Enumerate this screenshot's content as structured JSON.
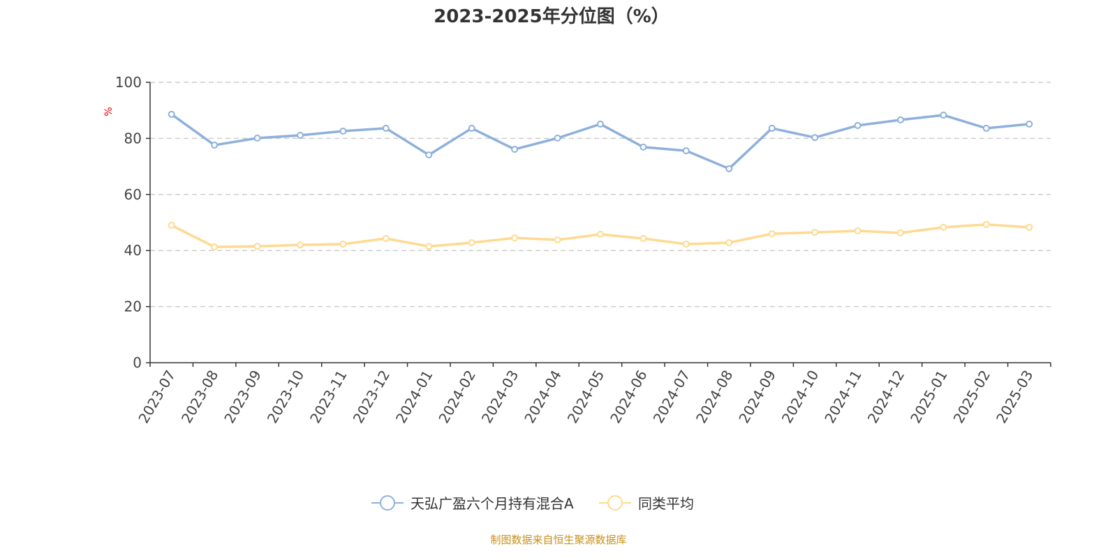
{
  "chart_data": {
    "type": "line",
    "title": "2023-2025年分位图（%）",
    "xlabel": "",
    "ylabel": "%",
    "ylim": [
      0,
      100
    ],
    "yticks": [
      0,
      20,
      40,
      60,
      80,
      100
    ],
    "grid": true,
    "legend_position": "bottom",
    "categories": [
      "2023-07",
      "2023-08",
      "2023-09",
      "2023-10",
      "2023-11",
      "2023-12",
      "2024-01",
      "2024-02",
      "2024-03",
      "2024-04",
      "2024-05",
      "2024-06",
      "2024-07",
      "2024-08",
      "2024-09",
      "2024-10",
      "2024-11",
      "2024-12",
      "2025-01",
      "2025-02",
      "2025-03"
    ],
    "series": [
      {
        "name": "天弘广盈六个月持有混合A",
        "color": "#8eb0dc",
        "values": [
          88.6,
          77.6,
          80.1,
          81.1,
          82.6,
          83.6,
          74.1,
          83.6,
          76.1,
          80.1,
          85.1,
          76.9,
          75.6,
          69.2,
          83.6,
          80.3,
          84.6,
          86.6,
          88.3,
          83.6,
          85.1
        ]
      },
      {
        "name": "同类平均",
        "color": "#ffd98f",
        "values": [
          49.0,
          41.3,
          41.5,
          42.0,
          42.3,
          44.3,
          41.5,
          42.8,
          44.5,
          43.8,
          45.8,
          44.3,
          42.3,
          42.8,
          46.0,
          46.5,
          47.0,
          46.3,
          48.3,
          49.3,
          48.3
        ]
      }
    ],
    "source": "制图数据来自恒生聚源数据库"
  }
}
